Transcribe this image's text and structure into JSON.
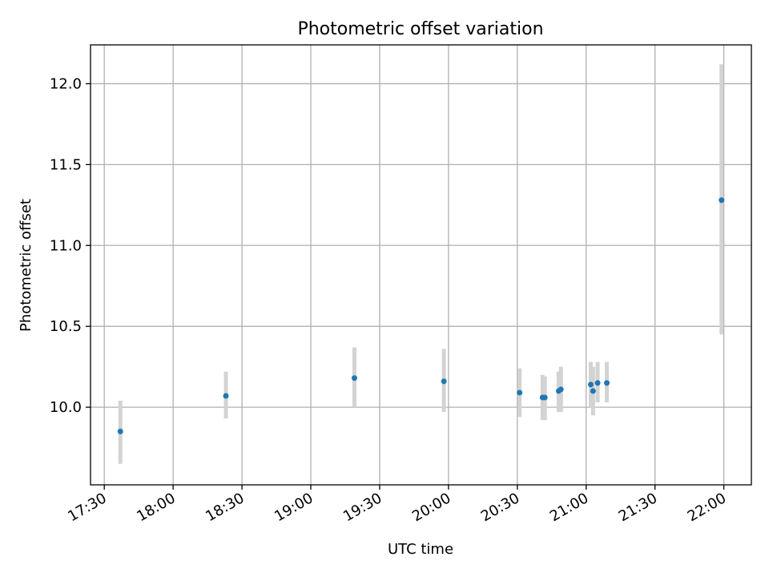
{
  "chart_data": {
    "type": "scatter",
    "title": "Photometric offset variation",
    "xlabel": "UTC time",
    "ylabel": "Photometric offset",
    "x_ticks": [
      "17:30",
      "18:00",
      "18:30",
      "19:00",
      "19:30",
      "20:00",
      "20:30",
      "21:00",
      "21:30",
      "22:00"
    ],
    "y_ticks": [
      "10.0",
      "10.5",
      "11.0",
      "11.5",
      "12.0"
    ],
    "xlim": [
      "17:24",
      "22:12"
    ],
    "ylim": [
      9.52,
      12.24
    ],
    "grid": true,
    "error_bar_color": "#d3d3d3",
    "marker_color": "#1f77b4",
    "series": [
      {
        "points": [
          {
            "x": "17:37",
            "y": 9.85,
            "ylow": 9.65,
            "yhigh": 10.04
          },
          {
            "x": "18:23",
            "y": 10.07,
            "ylow": 9.93,
            "yhigh": 10.22
          },
          {
            "x": "19:19",
            "y": 10.18,
            "ylow": 10.0,
            "yhigh": 10.37
          },
          {
            "x": "19:58",
            "y": 10.16,
            "ylow": 9.97,
            "yhigh": 10.36
          },
          {
            "x": "20:31",
            "y": 10.09,
            "ylow": 9.94,
            "yhigh": 10.24
          },
          {
            "x": "20:41",
            "y": 10.06,
            "ylow": 9.92,
            "yhigh": 10.2
          },
          {
            "x": "20:42",
            "y": 10.06,
            "ylow": 9.92,
            "yhigh": 10.19
          },
          {
            "x": "20:48",
            "y": 10.1,
            "ylow": 9.97,
            "yhigh": 10.22
          },
          {
            "x": "20:49",
            "y": 10.11,
            "ylow": 9.97,
            "yhigh": 10.25
          },
          {
            "x": "21:02",
            "y": 10.14,
            "ylow": 10.0,
            "yhigh": 10.28
          },
          {
            "x": "21:03",
            "y": 10.1,
            "ylow": 9.95,
            "yhigh": 10.25
          },
          {
            "x": "21:05",
            "y": 10.15,
            "ylow": 10.03,
            "yhigh": 10.28
          },
          {
            "x": "21:09",
            "y": 10.15,
            "ylow": 10.03,
            "yhigh": 10.28
          },
          {
            "x": "21:59",
            "y": 11.28,
            "ylow": 10.45,
            "yhigh": 12.12
          }
        ]
      }
    ]
  }
}
